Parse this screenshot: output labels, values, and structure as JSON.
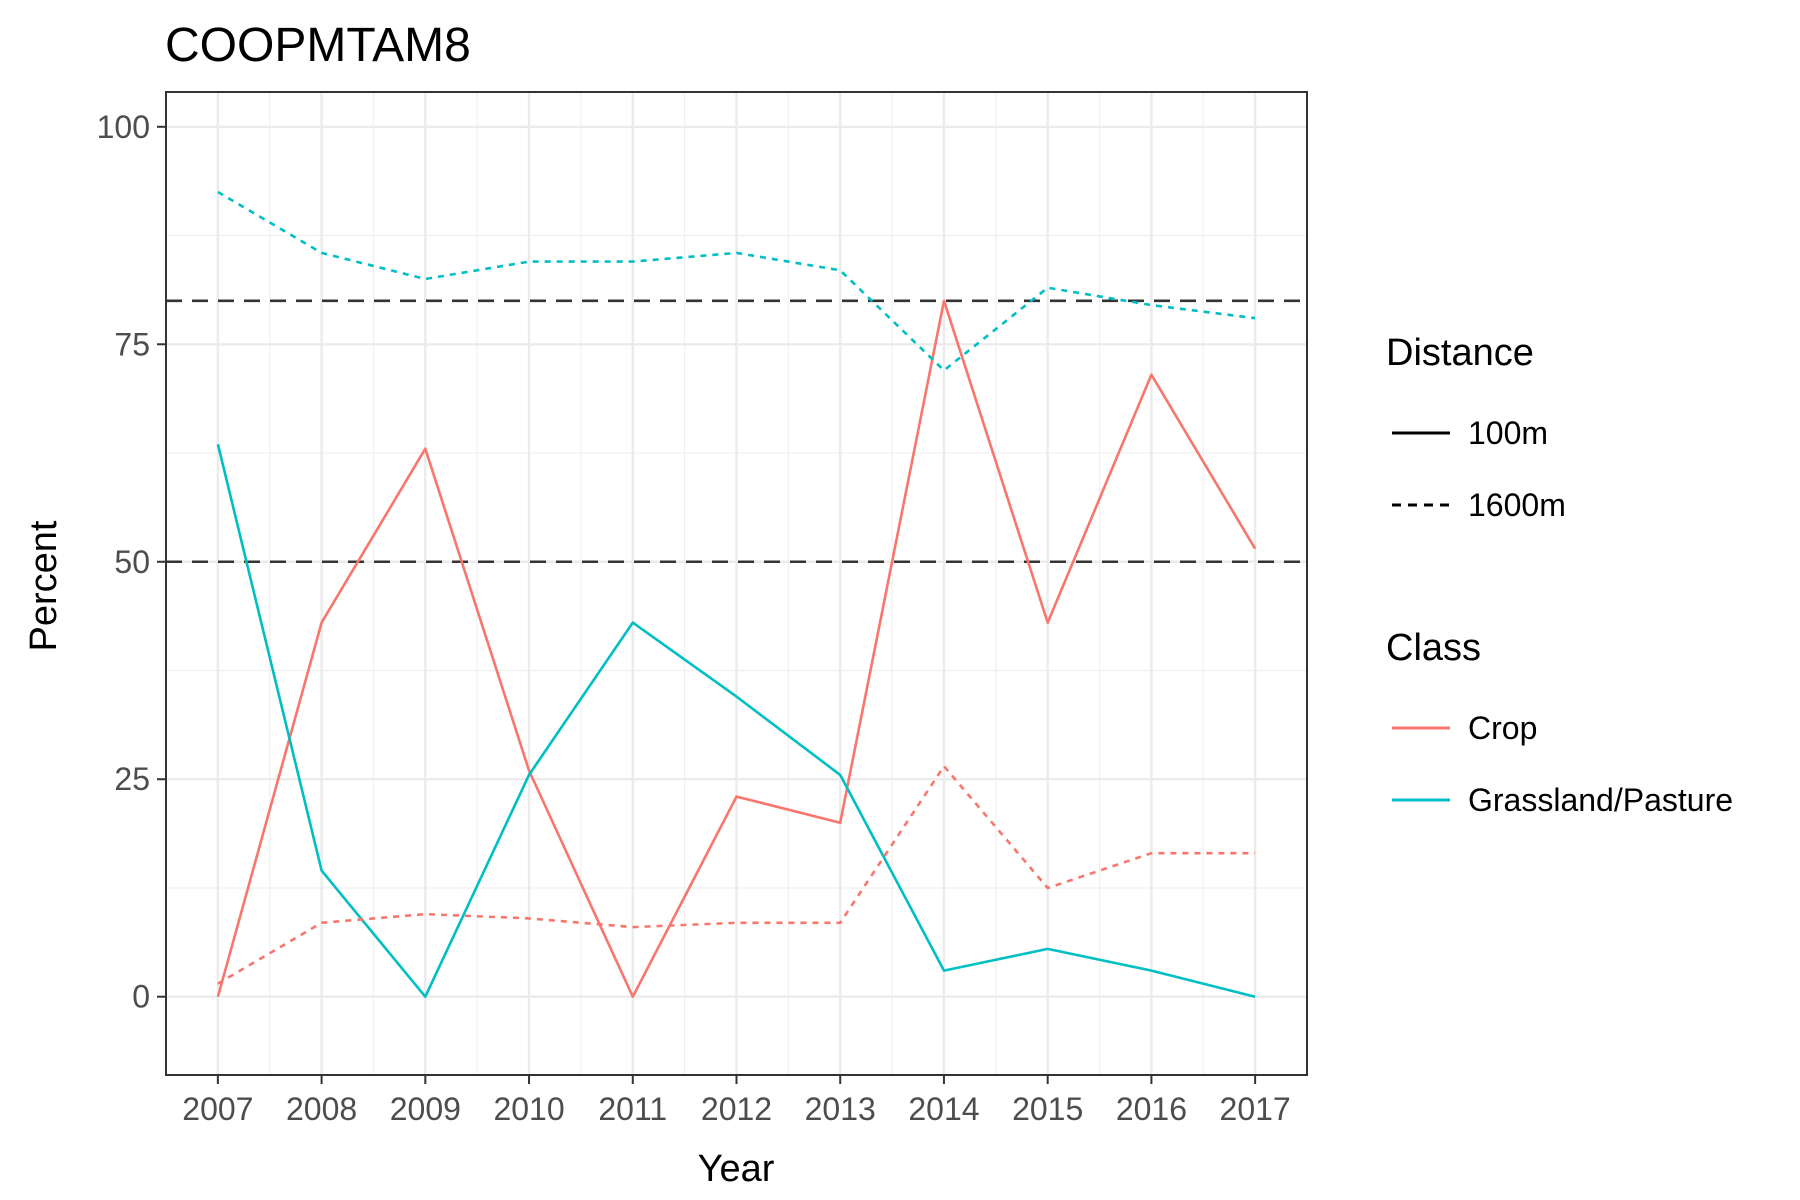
{
  "chart_data": {
    "type": "line",
    "title": "COOPMTAM8",
    "xlabel": "Year",
    "ylabel": "Percent",
    "x": [
      2007,
      2008,
      2009,
      2010,
      2011,
      2012,
      2013,
      2014,
      2015,
      2016,
      2017
    ],
    "ylim": [
      -9,
      104
    ],
    "y_ticks": [
      0,
      25,
      50,
      75,
      100
    ],
    "grid": true,
    "reference_lines": [
      {
        "y": 50,
        "style": "dashed",
        "color": "#333333"
      },
      {
        "y": 80,
        "style": "dashed",
        "color": "#333333"
      }
    ],
    "series": [
      {
        "name": "Crop",
        "distance": "100m",
        "linetype": "solid",
        "color": "#F8766D",
        "values": [
          0,
          43,
          63,
          26,
          0,
          23,
          20,
          80,
          43,
          71.5,
          51.5
        ]
      },
      {
        "name": "Grassland/Pasture",
        "distance": "100m",
        "linetype": "solid",
        "color": "#00BFC4",
        "values": [
          63.5,
          14.5,
          0,
          25.5,
          43,
          34.5,
          25.5,
          3,
          5.5,
          3,
          0
        ]
      },
      {
        "name": "Crop",
        "distance": "1600m",
        "linetype": "dashed",
        "color": "#F8766D",
        "values": [
          1.5,
          8.5,
          9.5,
          9,
          8,
          8.5,
          8.5,
          26.5,
          12.5,
          16.5,
          16.5
        ]
      },
      {
        "name": "Grassland/Pasture",
        "distance": "1600m",
        "linetype": "dashed",
        "color": "#00BFC4",
        "values": [
          92.5,
          85.5,
          82.5,
          84.5,
          84.5,
          85.5,
          83.5,
          72,
          81.5,
          79.5,
          78
        ]
      }
    ],
    "legend": {
      "placement": "right",
      "groups": [
        {
          "title": "Distance",
          "items": [
            {
              "label": "100m",
              "linetype": "solid",
              "color": "#000000"
            },
            {
              "label": "1600m",
              "linetype": "dashed",
              "color": "#000000"
            }
          ]
        },
        {
          "title": "Class",
          "items": [
            {
              "label": "Crop",
              "linetype": "solid",
              "color": "#F8766D"
            },
            {
              "label": "Grassland/Pasture",
              "linetype": "solid",
              "color": "#00BFC4"
            }
          ]
        }
      ]
    }
  }
}
